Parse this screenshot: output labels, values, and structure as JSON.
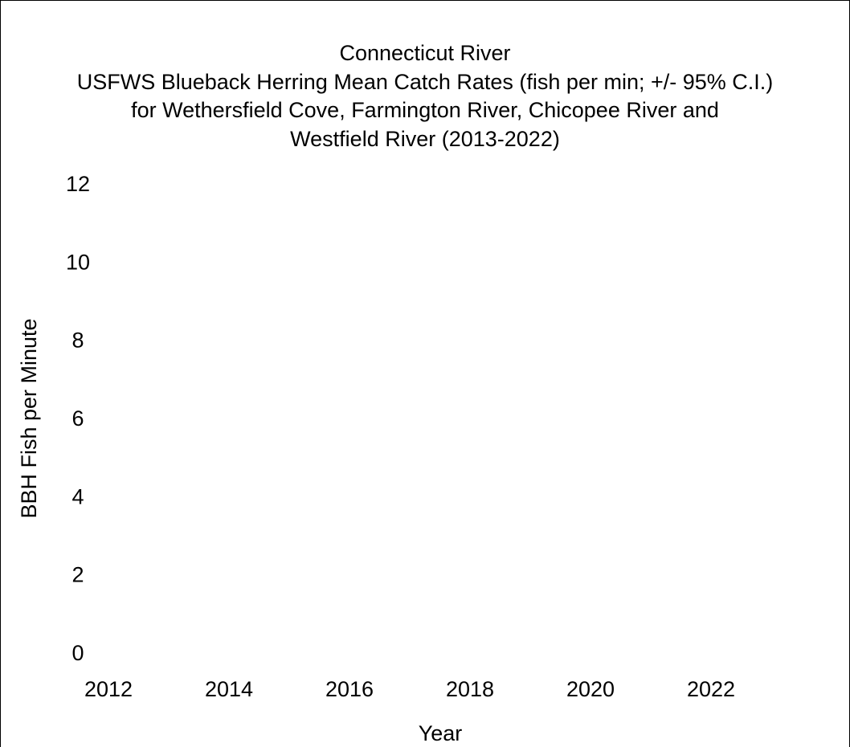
{
  "chart_data": {
    "type": "line",
    "title_lines": [
      "Connecticut River",
      "USFWS Blueback Herring Mean Catch Rates (fish per min; +/- 95% C.I.)",
      "for Wethersfield Cove, Farmington River, Chicopee River and",
      "Westfield River (2013-2022)"
    ],
    "xlabel": "Year",
    "ylabel": "BBH Fish per Minute",
    "xlim": [
      2012,
      2024
    ],
    "ylim": [
      0,
      12
    ],
    "x_ticks": [
      "2012",
      "2014",
      "2016",
      "2018",
      "2020",
      "2022"
    ],
    "y_ticks": [
      "0",
      "2",
      "4",
      "6",
      "8",
      "10",
      "12"
    ],
    "grid": false,
    "series": []
  }
}
